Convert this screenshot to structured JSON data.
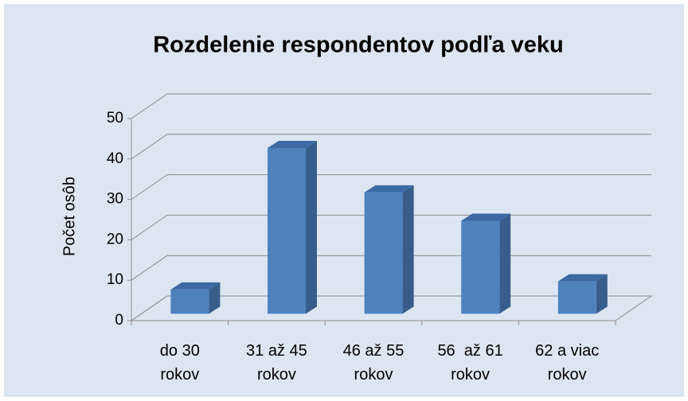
{
  "chart_data": {
    "type": "bar3d",
    "title": "Rozdelenie respondentov podľa veku",
    "y_label": "Počet osôb",
    "categories": [
      "do 30 rokov",
      "31 až 45 rokov",
      "46 až 55 rokov",
      "56  až 61 rokov",
      "62 a viac rokov"
    ],
    "values": [
      6,
      41,
      30,
      23,
      8
    ],
    "color": "#4f81bd",
    "ylim": [
      0,
      50
    ],
    "yticks": [
      0,
      10,
      20,
      30,
      40,
      50
    ],
    "grid": true
  }
}
